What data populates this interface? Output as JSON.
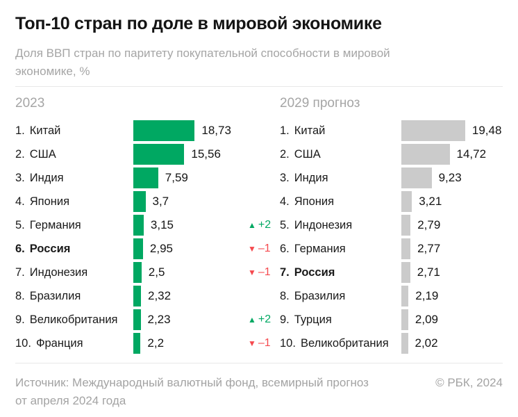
{
  "title": "Топ-10 стран по доле в мировой экономике",
  "subtitle_lines": [
    "Доля ВВП стран по паритету покупательной способности в мировой",
    "экономике, %"
  ],
  "colors": {
    "positive": "#00a862",
    "negative": "#f5494e",
    "bar_2023": "#00a862",
    "bar_2029": "#cbcbcb",
    "divider": "#e8e8e8",
    "muted_text": "#a5a5a5",
    "dark_text": "#141414"
  },
  "glyphs": {
    "up": "▲",
    "down": "▼"
  },
  "charts": [
    {
      "heading": "2023",
      "bar_color": "#00a862",
      "rows": [
        {
          "rank": "1.",
          "country": "Китай",
          "value": 18.73,
          "value_display": "18,73",
          "bold": false
        },
        {
          "rank": "2.",
          "country": "США",
          "value": 15.56,
          "value_display": "15,56",
          "bold": false
        },
        {
          "rank": "3.",
          "country": "Индия",
          "value": 7.59,
          "value_display": "7,59",
          "bold": false
        },
        {
          "rank": "4.",
          "country": "Япония",
          "value": 3.7,
          "value_display": "3,7",
          "bold": false
        },
        {
          "rank": "5.",
          "country": "Германия",
          "value": 3.15,
          "value_display": "3,15",
          "bold": false
        },
        {
          "rank": "6.",
          "country": "Россия",
          "value": 2.95,
          "value_display": "2,95",
          "bold": true
        },
        {
          "rank": "7.",
          "country": "Индонезия",
          "value": 2.5,
          "value_display": "2,5",
          "bold": false
        },
        {
          "rank": "8.",
          "country": "Бразилия",
          "value": 2.32,
          "value_display": "2,32",
          "bold": false
        },
        {
          "rank": "9.",
          "country": "Великобритания",
          "value": 2.23,
          "value_display": "2,23",
          "bold": false
        },
        {
          "rank": "10.",
          "country": "Франция",
          "value": 2.2,
          "value_display": "2,2",
          "bold": false
        }
      ]
    },
    {
      "heading": "2029 прогноз",
      "bar_color": "#cbcbcb",
      "rows": [
        {
          "rank": "1.",
          "country": "Китай",
          "value": 19.48,
          "value_display": "19,48",
          "bold": false
        },
        {
          "rank": "2.",
          "country": "США",
          "value": 14.72,
          "value_display": "14,72",
          "bold": false
        },
        {
          "rank": "3.",
          "country": "Индия",
          "value": 9.23,
          "value_display": "9,23",
          "bold": false
        },
        {
          "rank": "4.",
          "country": "Япония",
          "value": 3.21,
          "value_display": "3,21",
          "bold": false
        },
        {
          "rank": "5.",
          "country": "Индонезия",
          "value": 2.79,
          "value_display": "2,79",
          "bold": false,
          "change": {
            "dir": "up",
            "label": "+2"
          }
        },
        {
          "rank": "6.",
          "country": "Германия",
          "value": 2.77,
          "value_display": "2,77",
          "bold": false,
          "change": {
            "dir": "down",
            "label": "–1"
          }
        },
        {
          "rank": "7.",
          "country": "Россия",
          "value": 2.71,
          "value_display": "2,71",
          "bold": true,
          "change": {
            "dir": "down",
            "label": "–1"
          }
        },
        {
          "rank": "8.",
          "country": "Бразилия",
          "value": 2.19,
          "value_display": "2,19",
          "bold": false
        },
        {
          "rank": "9.",
          "country": "Турция",
          "value": 2.09,
          "value_display": "2,09",
          "bold": false,
          "change": {
            "dir": "up",
            "label": "+2"
          }
        },
        {
          "rank": "10.",
          "country": "Великобритания",
          "value": 2.02,
          "value_display": "2,02",
          "bold": false,
          "change": {
            "dir": "down",
            "label": "–1"
          }
        }
      ]
    }
  ],
  "footer": {
    "source_lines": [
      "Источник: Международный валютный фонд, всемирный прогноз",
      "от апреля 2024 года"
    ],
    "copyright": "© РБК, 2024"
  },
  "chart_data": [
    {
      "type": "bar",
      "orientation": "horizontal",
      "title": "2023",
      "categories": [
        "Китай",
        "США",
        "Индия",
        "Япония",
        "Германия",
        "Россия",
        "Индонезия",
        "Бразилия",
        "Великобритания",
        "Франция"
      ],
      "values": [
        18.73,
        15.56,
        7.59,
        3.7,
        3.15,
        2.95,
        2.5,
        2.32,
        2.23,
        2.2
      ],
      "bar_color": "#00a862",
      "highlighted_category": "Россия",
      "value_suffix": "%",
      "legend": "off",
      "grid": "off"
    },
    {
      "type": "bar",
      "orientation": "horizontal",
      "title": "2029 прогноз",
      "categories": [
        "Китай",
        "США",
        "Индия",
        "Япония",
        "Индонезия",
        "Германия",
        "Россия",
        "Бразилия",
        "Турция",
        "Великобритания"
      ],
      "values": [
        19.48,
        14.72,
        9.23,
        3.21,
        2.79,
        2.77,
        2.71,
        2.19,
        2.09,
        2.02
      ],
      "bar_color": "#cbcbcb",
      "highlighted_category": "Россия",
      "rank_changes": {
        "Индонезия": "+2",
        "Германия": "-1",
        "Россия": "-1",
        "Турция": "+2",
        "Великобритания": "-1"
      },
      "value_suffix": "%",
      "legend": "off",
      "grid": "off"
    }
  ]
}
